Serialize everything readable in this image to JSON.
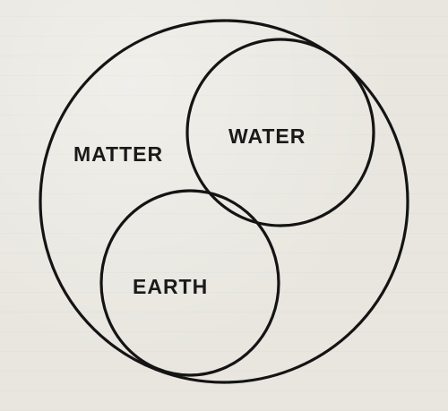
{
  "diagram": {
    "labels": {
      "matter": "MATTER",
      "water": "WATER",
      "earth": "EARTH"
    },
    "colors": {
      "ink": "#141414",
      "paper": "#e8e6df"
    }
  }
}
